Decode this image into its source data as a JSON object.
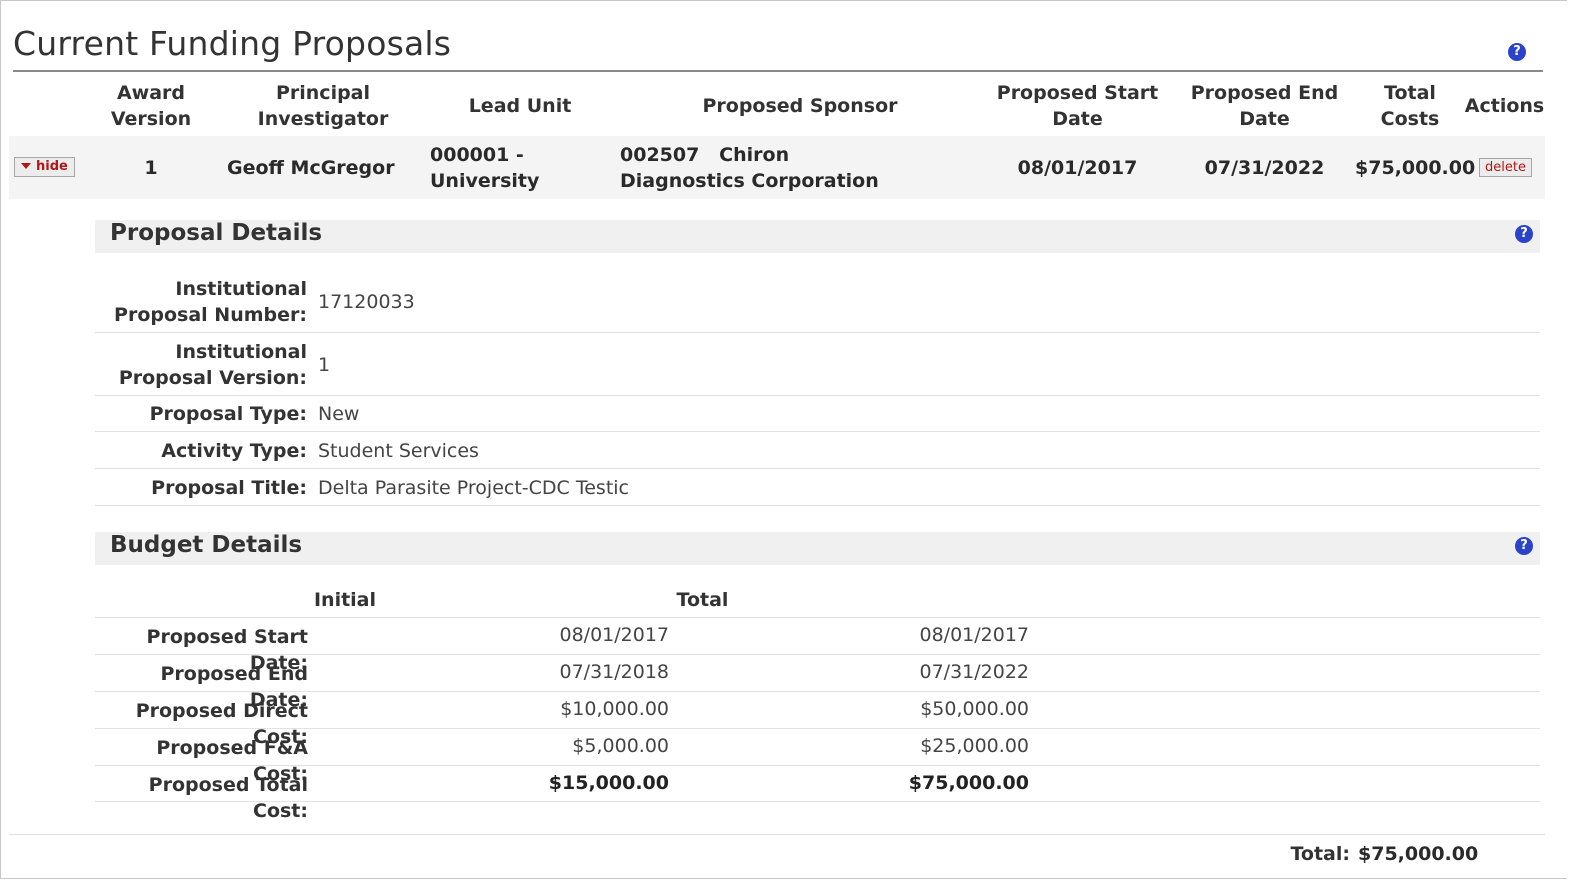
{
  "page": {
    "title": "Current Funding Proposals",
    "help_glyph": "?"
  },
  "table": {
    "headers": {
      "award_version": "Award Version",
      "principal_investigator": "Principal Investigator",
      "lead_unit": "Lead Unit",
      "proposed_sponsor": "Proposed Sponsor",
      "proposed_start_date": "Proposed Start Date",
      "proposed_end_date": "Proposed End Date",
      "total_costs": "Total Costs",
      "actions": "Actions"
    },
    "row": {
      "toggle_label": "hide",
      "award_version": "1",
      "principal_investigator": "Geoff McGregor",
      "lead_unit": "000001 - University",
      "sponsor": "002507   Chiron Diagnostics Corporation",
      "start_date": "08/01/2017",
      "end_date": "07/31/2022",
      "total_costs": "$75,000.00",
      "delete_label": "delete"
    }
  },
  "proposal_details": {
    "title": "Proposal Details",
    "fields": [
      {
        "label": "Institutional Proposal Number:",
        "value": "17120033"
      },
      {
        "label": "Institutional Proposal Version:",
        "value": "1"
      },
      {
        "label": "Proposal Type:",
        "value": "New"
      },
      {
        "label": "Activity Type:",
        "value": "Student Services"
      },
      {
        "label": "Proposal Title:",
        "value": "Delta Parasite Project-CDC Testic"
      }
    ]
  },
  "budget_details": {
    "title": "Budget Details",
    "col_initial": "Initial",
    "col_total": "Total",
    "rows": [
      {
        "label": "Proposed Start Date:",
        "initial": "08/01/2017",
        "total": "08/01/2017"
      },
      {
        "label": "Proposed End Date:",
        "initial": "07/31/2018",
        "total": "07/31/2022"
      },
      {
        "label": "Proposed Direct Cost:",
        "initial": "$10,000.00",
        "total": "$50,000.00"
      },
      {
        "label": "Proposed F&A Cost:",
        "initial": "$5,000.00",
        "total": "$25,000.00"
      },
      {
        "label": "Proposed Total Cost:",
        "initial": "$15,000.00",
        "total": "$75,000.00"
      }
    ]
  },
  "footer": {
    "total_label": "Total:",
    "total_value": "$75,000.00"
  },
  "colors": {
    "help_icon": "#2a43c9",
    "action_text": "#b01818",
    "row_bg": "#f4f4f4",
    "section_bg": "#f0f0f0"
  }
}
